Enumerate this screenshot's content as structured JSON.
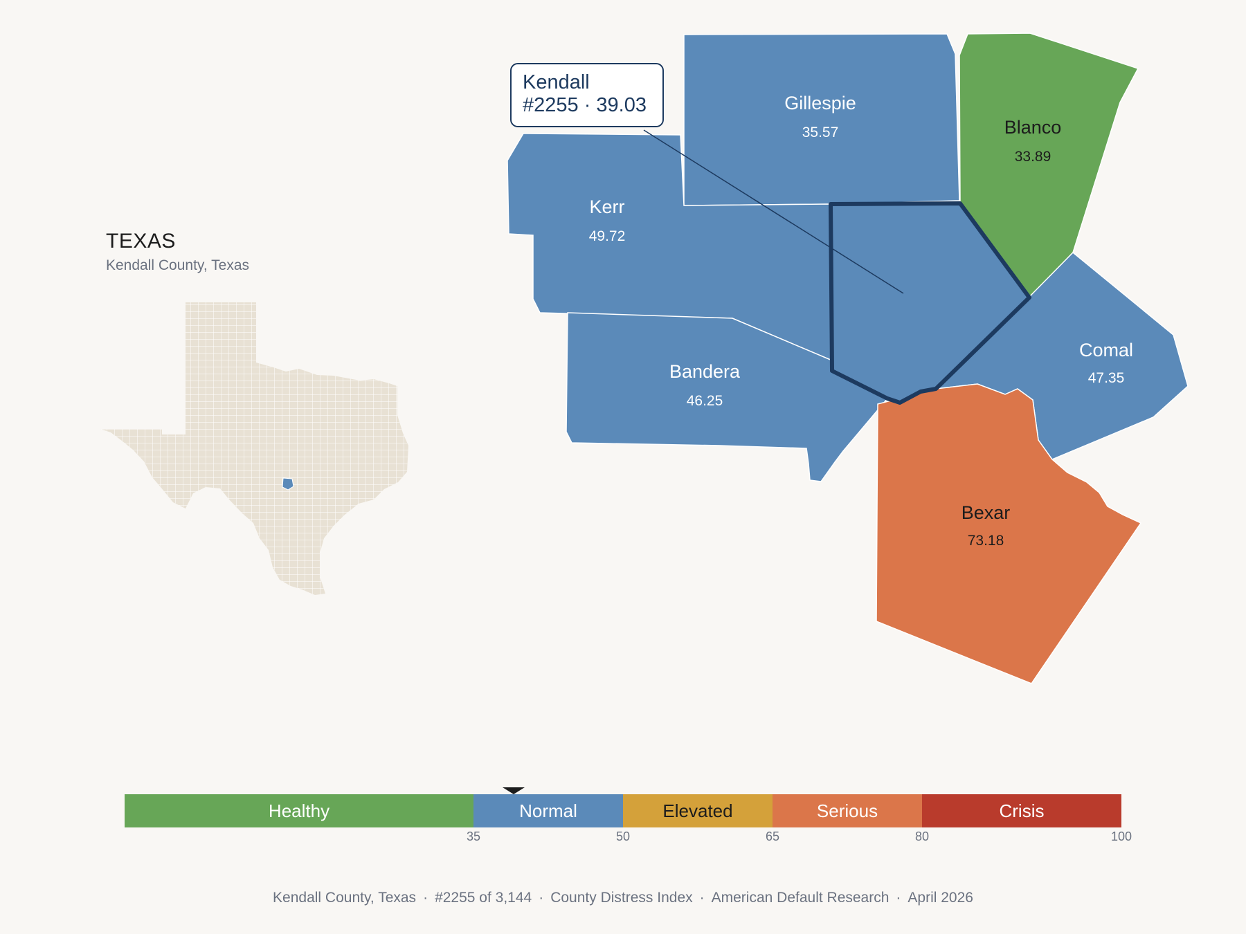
{
  "state": {
    "name": "TEXAS",
    "subtitle": "Kendall County, Texas"
  },
  "callout": {
    "line1": "Kendall",
    "line2": "#2255 · 39.03"
  },
  "colors": {
    "healthy": "#67a657",
    "normal": "#5b8ab9",
    "elevated": "#d4a13a",
    "serious": "#db764a",
    "crisis": "#b93b2c",
    "highlight_outline": "#1d3a5f",
    "locator_fill": "#e8e1d4"
  },
  "counties": [
    {
      "name": "Gillespie",
      "value": "35.57",
      "category": "normal"
    },
    {
      "name": "Blanco",
      "value": "33.89",
      "category": "healthy"
    },
    {
      "name": "Kerr",
      "value": "49.72",
      "category": "normal"
    },
    {
      "name": "Bandera",
      "value": "46.25",
      "category": "normal"
    },
    {
      "name": "Comal",
      "value": "47.35",
      "category": "normal"
    },
    {
      "name": "Bexar",
      "value": "73.18",
      "category": "serious"
    },
    {
      "name": "Kendall",
      "value": "39.03",
      "category": "normal",
      "highlighted": true
    }
  ],
  "scale": {
    "segments": [
      {
        "label": "Healthy",
        "from": 0,
        "to": 35,
        "color": "#67a657",
        "text_color": "#ffffff"
      },
      {
        "label": "Normal",
        "from": 35,
        "to": 50,
        "color": "#5b8ab9",
        "text_color": "#ffffff"
      },
      {
        "label": "Elevated",
        "from": 50,
        "to": 65,
        "color": "#d4a13a",
        "text_color": "#1c1c1c"
      },
      {
        "label": "Serious",
        "from": 65,
        "to": 80,
        "color": "#db764a",
        "text_color": "#ffffff"
      },
      {
        "label": "Crisis",
        "from": 80,
        "to": 100,
        "color": "#b93b2c",
        "text_color": "#ffffff"
      }
    ],
    "ticks": [
      "35",
      "50",
      "65",
      "80",
      "100"
    ],
    "marker_value": 39.03
  },
  "footer": {
    "county": "Kendall County, Texas",
    "rank": "#2255 of 3,144",
    "index": "County Distress Index",
    "source": "American Default Research",
    "date": "April 2026"
  }
}
